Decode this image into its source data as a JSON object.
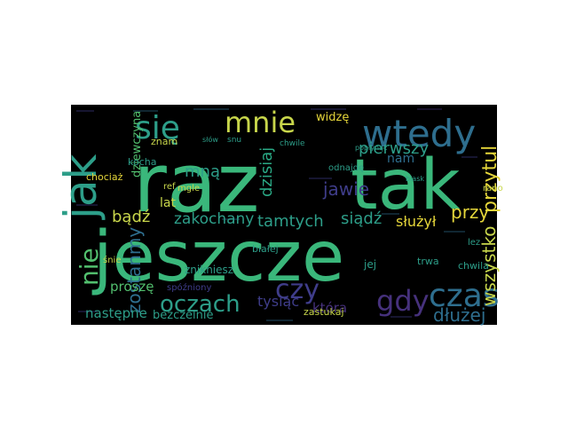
{
  "wordcloud": {
    "background": "#000000",
    "palette": {
      "green": "#3ab77b",
      "teal": "#2d9e89",
      "blue": "#2e6e8e",
      "lime": "#c8d64b",
      "yellow": "#e4d53a",
      "purple": "#46317c",
      "indigo": "#3f3d8a",
      "ltgreen": "#52bf6e",
      "midgreen": "#2aa985"
    },
    "words": [
      {
        "id": "jeszcze",
        "text": "jeszcze",
        "color": "green"
      },
      {
        "id": "raz",
        "text": "raz",
        "color": "green"
      },
      {
        "id": "tak",
        "text": "tak",
        "color": "green"
      },
      {
        "id": "jak",
        "text": "jak",
        "color": "teal"
      },
      {
        "id": "wtedy",
        "text": "wtedy",
        "color": "blue"
      },
      {
        "id": "mnie",
        "text": "mnie",
        "color": "lime"
      },
      {
        "id": "sie",
        "text": "się",
        "color": "teal"
      },
      {
        "id": "czas",
        "text": "czas",
        "color": "blue"
      },
      {
        "id": "gdy",
        "text": "gdy",
        "color": "purple"
      },
      {
        "id": "czy",
        "text": "czy",
        "color": "indigo"
      },
      {
        "id": "oczach",
        "text": "oczach",
        "color": "teal"
      },
      {
        "id": "nie",
        "text": "nie",
        "color": "ltgreen"
      },
      {
        "id": "przytul",
        "text": "przytul",
        "color": "yellow"
      },
      {
        "id": "wszystko",
        "text": "wszystko",
        "color": "lime"
      },
      {
        "id": "pierwszy",
        "text": "pierwszy",
        "color": "teal"
      },
      {
        "id": "jawie",
        "text": "jawie",
        "color": "indigo"
      },
      {
        "id": "zostanmy",
        "text": "zostanmy",
        "color": "blue"
      },
      {
        "id": "dluzej",
        "text": "dłużej",
        "color": "blue"
      },
      {
        "id": "przy",
        "text": "przy",
        "color": "yellow"
      },
      {
        "id": "dzisiaj",
        "text": "dzisiaj",
        "color": "midgreen"
      },
      {
        "id": "tamtych",
        "text": "tamtych",
        "color": "teal"
      },
      {
        "id": "zakochany",
        "text": "zakochany",
        "color": "teal"
      },
      {
        "id": "siadz",
        "text": "siądź",
        "color": "teal"
      },
      {
        "id": "badz",
        "text": "bądź",
        "color": "lime"
      },
      {
        "id": "mna",
        "text": "mną",
        "color": "teal"
      },
      {
        "id": "sluzyl",
        "text": "służył",
        "color": "yellow"
      },
      {
        "id": "dziewczyna",
        "text": "dziewczyna",
        "color": "ltgreen"
      },
      {
        "id": "tysiac",
        "text": "tysiąc",
        "color": "indigo"
      },
      {
        "id": "ktora",
        "text": "która",
        "color": "purple"
      },
      {
        "id": "prosze",
        "text": "proszę",
        "color": "ltgreen"
      },
      {
        "id": "nastepne",
        "text": "następne",
        "color": "teal"
      },
      {
        "id": "bezczelnie",
        "text": "bezczelnie",
        "color": "teal"
      },
      {
        "id": "zostaniesz",
        "text": "znikniesz",
        "color": "teal"
      },
      {
        "id": "widze",
        "text": "widzę",
        "color": "yellow"
      },
      {
        "id": "nam",
        "text": "nam",
        "color": "blue"
      },
      {
        "id": "lat",
        "text": "lat",
        "color": "lime"
      },
      {
        "id": "kocha",
        "text": "kocha",
        "color": "teal"
      },
      {
        "id": "znam",
        "text": "znam",
        "color": "lime"
      },
      {
        "id": "chociaz",
        "text": "chociaż",
        "color": "yellow"
      },
      {
        "id": "jej",
        "text": "jej",
        "color": "teal"
      },
      {
        "id": "trwa",
        "text": "trwa",
        "color": "teal"
      },
      {
        "id": "chwila",
        "text": "chwila",
        "color": "teal"
      },
      {
        "id": "zastukaj",
        "text": "zastukaj",
        "color": "lime"
      },
      {
        "id": "bialej",
        "text": "białej",
        "color": "teal"
      },
      {
        "id": "odnajde",
        "text": "odnajdę",
        "color": "teal"
      },
      {
        "id": "sluzyl_l",
        "text": "lez",
        "color": "teal"
      },
      {
        "id": "rano",
        "text": "rano",
        "color": "lime"
      },
      {
        "id": "snie",
        "text": "śnie",
        "color": "lime"
      },
      {
        "id": "mgle",
        "text": "mgle",
        "color": "lime"
      },
      {
        "id": "ref",
        "text": "ref",
        "color": "lime"
      },
      {
        "id": "chwile",
        "text": "chwile",
        "color": "teal"
      },
      {
        "id": "snu",
        "text": "snu",
        "color": "teal"
      },
      {
        "id": "slow",
        "text": "słów",
        "color": "teal"
      },
      {
        "id": "spozniony",
        "text": "spóźniony",
        "color": "indigo"
      },
      {
        "id": "poplynac",
        "text": "popłynąć",
        "color": "teal"
      },
      {
        "id": "blask",
        "text": "blask",
        "color": "teal"
      }
    ]
  }
}
